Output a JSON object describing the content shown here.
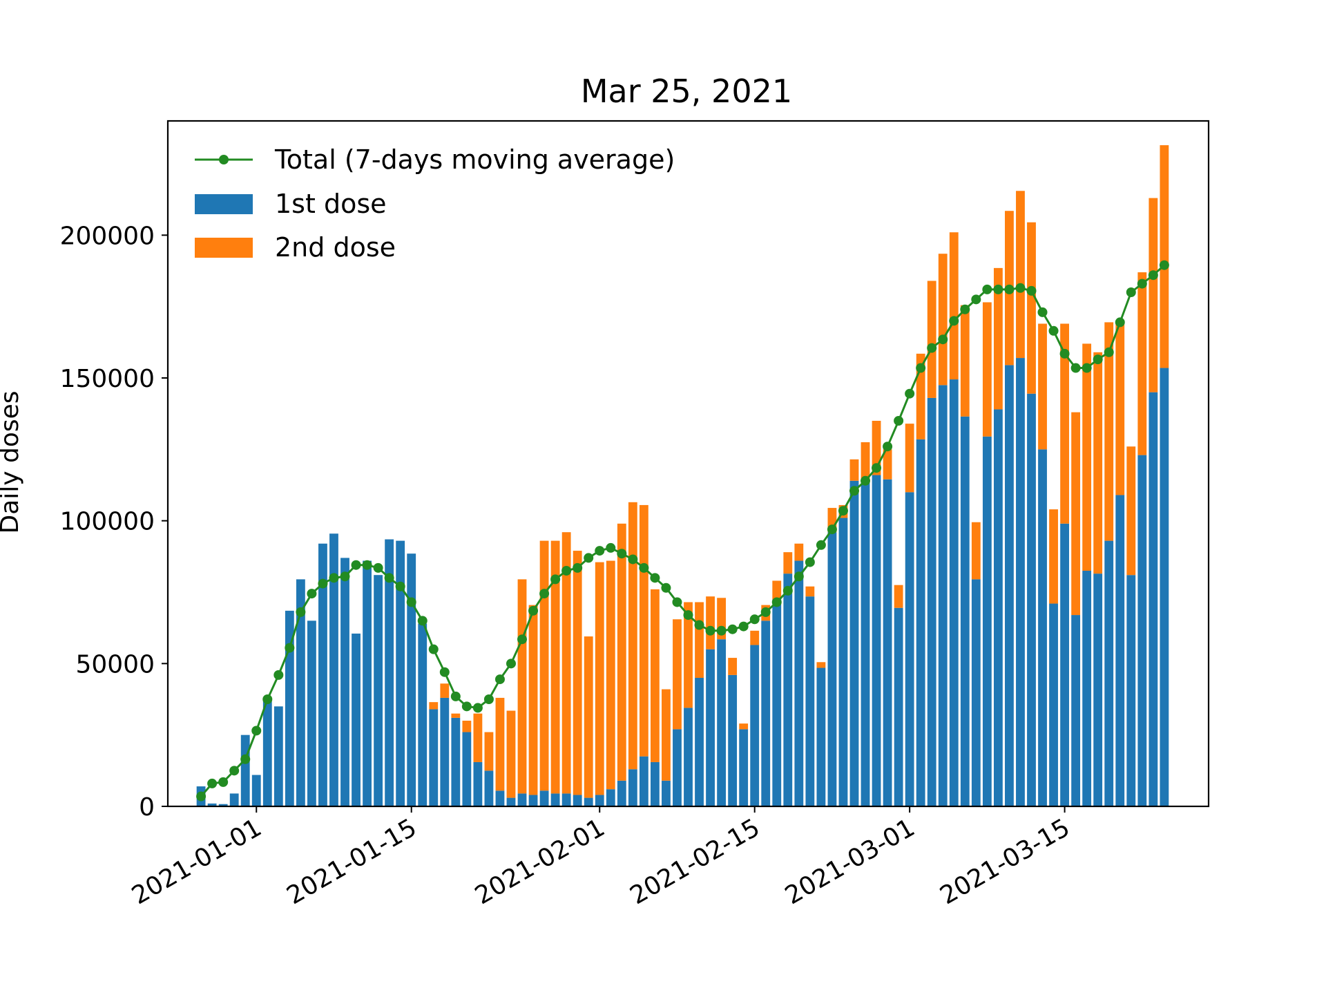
{
  "chart_data": {
    "type": "bar",
    "title": "Mar 25, 2021",
    "xlabel": "",
    "ylabel": "Daily doses",
    "ylim": [
      0,
      240000
    ],
    "yticks": [
      0,
      50000,
      100000,
      150000,
      200000
    ],
    "ytick_labels": [
      "0",
      "50000",
      "100000",
      "150000",
      "200000"
    ],
    "x_start": "2020-12-27",
    "xlim": [
      "2020-12-24",
      "2021-03-28"
    ],
    "xticks": [
      "2021-01-01",
      "2021-01-15",
      "2021-02-01",
      "2021-02-15",
      "2021-03-01",
      "2021-03-15"
    ],
    "xtick_labels": [
      "2021-01-01",
      "2021-01-15",
      "2021-02-01",
      "2021-02-15",
      "2021-03-01",
      "2021-03-15"
    ],
    "legend_position": "top-left",
    "legend": [
      "Total (7-days moving average)",
      "1st dose",
      "2nd dose"
    ],
    "grid": false,
    "colors": {
      "first_dose": "#1f77b4",
      "second_dose": "#ff7f0e",
      "moving_average": "#228b22"
    },
    "series": [
      {
        "name": "1st dose",
        "stacked": true,
        "values": [
          7000,
          1000,
          800,
          4500,
          25000,
          11000,
          37000,
          35000,
          68500,
          79500,
          65000,
          92000,
          95500,
          87000,
          60500,
          86000,
          81000,
          93500,
          93000,
          88500,
          64000,
          34000,
          38000,
          31000,
          26000,
          15500,
          12500,
          5500,
          3000,
          4500,
          4000,
          5500,
          4500,
          4500,
          4000,
          3000,
          4000,
          6000,
          9000,
          13000,
          17500,
          15500,
          9000,
          27000,
          34500,
          45000,
          55000,
          58500,
          46000,
          27000,
          56500,
          65000,
          72500,
          81500,
          86000,
          73500,
          48500,
          96000,
          101000,
          114000,
          113500,
          116000,
          114500,
          69500,
          110000,
          128500,
          143000,
          147500,
          149500,
          136500,
          79500,
          129500,
          139000,
          154500,
          157000,
          144500,
          125000,
          71000,
          99000,
          67000,
          82500,
          81500,
          93000,
          109000,
          81000,
          123000,
          145000,
          153500
        ]
      },
      {
        "name": "2nd dose",
        "stacked": true,
        "values": [
          0,
          0,
          0,
          0,
          0,
          0,
          0,
          0,
          0,
          0,
          0,
          0,
          0,
          0,
          0,
          0,
          0,
          0,
          0,
          0,
          0,
          2500,
          5000,
          1500,
          4000,
          17000,
          13500,
          32500,
          30500,
          75000,
          66500,
          87500,
          88500,
          91500,
          85500,
          56500,
          81500,
          80000,
          90000,
          93500,
          88000,
          60500,
          32000,
          38500,
          37000,
          26500,
          18500,
          14500,
          6000,
          2000,
          5000,
          5500,
          6500,
          7500,
          6000,
          3500,
          2000,
          8500,
          4500,
          7500,
          14000,
          19000,
          10500,
          8000,
          24000,
          30000,
          41000,
          46000,
          51500,
          39000,
          20000,
          47000,
          49500,
          54000,
          58500,
          60000,
          44000,
          33000,
          70000,
          71000,
          79500,
          77500,
          76500,
          60000,
          45000,
          64000,
          68000,
          78000
        ]
      },
      {
        "name": "Total (7-days moving average)",
        "type": "line",
        "values": [
          3500,
          8000,
          8500,
          12500,
          16500,
          26500,
          37500,
          46000,
          55500,
          68000,
          74500,
          78000,
          80000,
          80500,
          84500,
          84500,
          83500,
          80000,
          77000,
          71500,
          65000,
          55000,
          47000,
          38500,
          35000,
          34500,
          37500,
          44500,
          50000,
          58500,
          68500,
          74500,
          79500,
          82500,
          83500,
          87000,
          89500,
          90500,
          88500,
          86500,
          83500,
          80000,
          76500,
          71500,
          67000,
          63500,
          61500,
          61500,
          62000,
          63000,
          65500,
          68000,
          71500,
          75500,
          80500,
          85500,
          91500,
          97000,
          103500,
          110500,
          114000,
          118500,
          126000,
          135000,
          144500,
          153500,
          160500,
          163500,
          170000,
          174000,
          177500,
          181000,
          181000,
          181000,
          181500,
          180500,
          173000,
          166500,
          158500,
          153500,
          153500,
          156500,
          159000,
          169500,
          180000,
          183000,
          186000,
          189500
        ]
      }
    ]
  }
}
